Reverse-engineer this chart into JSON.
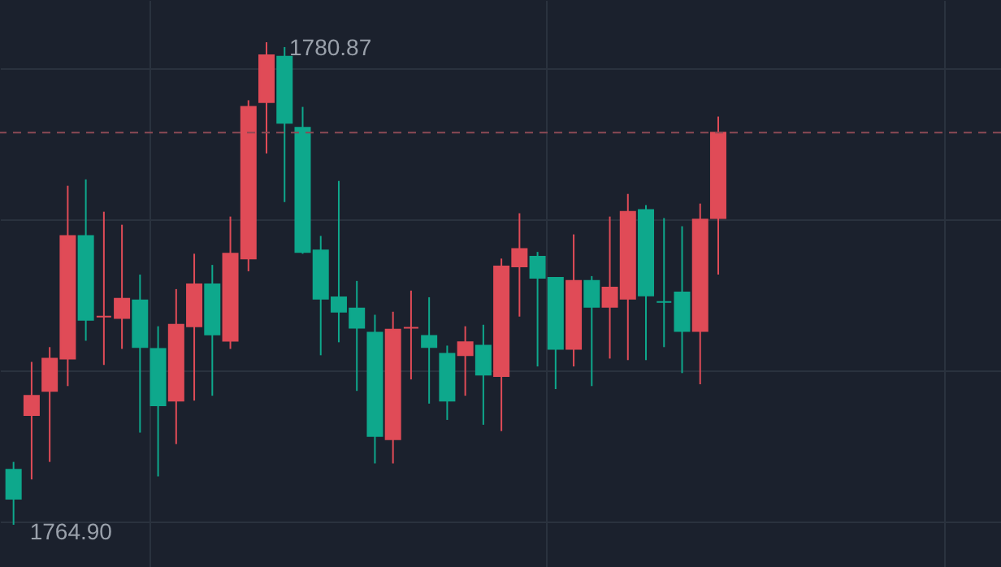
{
  "chart_data": {
    "type": "candlestick",
    "categories": [
      null,
      null,
      null,
      null,
      null,
      null,
      null,
      null,
      null,
      null,
      null,
      null,
      null,
      null,
      null,
      null,
      null,
      null,
      null,
      null,
      null,
      null,
      null,
      null,
      null,
      null,
      null,
      null,
      null,
      null,
      null,
      null,
      null,
      null,
      null,
      null,
      null,
      null,
      null,
      null
    ],
    "ohlc": [
      [
        1766.72,
        1766.98,
        1764.9,
        1765.76
      ],
      [
        1768.53,
        1770.29,
        1766.4,
        1769.17
      ],
      [
        1769.33,
        1770.78,
        1766.98,
        1770.4
      ],
      [
        1770.4,
        1776.12,
        1769.49,
        1774.46
      ],
      [
        1774.46,
        1776.33,
        1770.99,
        1771.68
      ],
      [
        1771.79,
        1775.26,
        1770.19,
        1771.79
      ],
      [
        1771.74,
        1774.83,
        1770.72,
        1772.38
      ],
      [
        1772.33,
        1773.18,
        1767.95,
        1770.78
      ],
      [
        1770.72,
        1771.47,
        1766.5,
        1768.85
      ],
      [
        1769.01,
        1772.7,
        1767.57,
        1771.52
      ],
      [
        1771.47,
        1773.87,
        1769.01,
        1772.86
      ],
      [
        1772.86,
        1773.5,
        1769.17,
        1771.2
      ],
      [
        1770.99,
        1775.1,
        1770.72,
        1773.87
      ],
      [
        1773.71,
        1778.95,
        1773.29,
        1778.73
      ],
      [
        1778.89,
        1780.87,
        1777.19,
        1780.44
      ],
      [
        1780.39,
        1780.71,
        1775.58,
        1778.2
      ],
      [
        1778.04,
        1778.73,
        1773.87,
        1773.93
      ],
      [
        1773.98,
        1774.46,
        1770.51,
        1772.38
      ],
      [
        1772.43,
        1776.28,
        1770.94,
        1771.95
      ],
      [
        1772.06,
        1772.97,
        1769.33,
        1771.42
      ],
      [
        1771.26,
        1771.85,
        1766.93,
        1767.84
      ],
      [
        1767.73,
        1771.95,
        1766.93,
        1771.36
      ],
      [
        1771.42,
        1772.65,
        1769.71,
        1771.42
      ],
      [
        1771.15,
        1772.43,
        1768.91,
        1770.78
      ],
      [
        1770.56,
        1770.83,
        1768.37,
        1769.01
      ],
      [
        1770.51,
        1771.47,
        1769.17,
        1770.94
      ],
      [
        1770.83,
        1771.52,
        1768.21,
        1769.87
      ],
      [
        1769.82,
        1773.71,
        1768.0,
        1773.45
      ],
      [
        1773.45,
        1775.21,
        1771.79,
        1774.03
      ],
      [
        1773.77,
        1773.93,
        1770.14,
        1773.07
      ],
      [
        1773.07,
        1773.07,
        1769.39,
        1770.72
      ],
      [
        1770.72,
        1774.51,
        1770.14,
        1772.97
      ],
      [
        1772.97,
        1773.13,
        1769.49,
        1772.11
      ],
      [
        1772.11,
        1775.1,
        1770.4,
        1772.75
      ],
      [
        1772.38,
        1775.85,
        1770.35,
        1775.26
      ],
      [
        1775.32,
        1775.48,
        1770.35,
        1772.49
      ],
      [
        1772.27,
        1775.05,
        1770.78,
        1772.27
      ],
      [
        1772.59,
        1774.78,
        1769.92,
        1771.31
      ],
      [
        1771.31,
        1775.53,
        1769.55,
        1775.0
      ],
      [
        1775.05,
        1778.41,
        1773.18,
        1777.88
      ]
    ],
    "colors": [
      "#0ea88c",
      "#e04b57",
      "#e04b57",
      "#e04b57",
      "#0ea88c",
      "#e04b57",
      "#e04b57",
      "#0ea88c",
      "#0ea88c",
      "#e04b57",
      "#e04b57",
      "#0ea88c",
      "#e04b57",
      "#e04b57",
      "#e04b57",
      "#0ea88c",
      "#0ea88c",
      "#0ea88c",
      "#0ea88c",
      "#0ea88c",
      "#0ea88c",
      "#e04b57",
      "#e04b57",
      "#0ea88c",
      "#0ea88c",
      "#e04b57",
      "#0ea88c",
      "#e04b57",
      "#e04b57",
      "#0ea88c",
      "#0ea88c",
      "#e04b57",
      "#0ea88c",
      "#e04b57",
      "#e04b57",
      "#0ea88c",
      "#0ea88c",
      "#0ea88c",
      "#e04b57",
      "#e04b57"
    ],
    "ref_lines": [
      {
        "axis": "y",
        "value": 1777.88,
        "color": "#8c4a55",
        "line_style": "dashed"
      }
    ],
    "annotations": [
      "1780.87",
      "1764.90"
    ],
    "grid": true,
    "tick_labels": false
  }
}
